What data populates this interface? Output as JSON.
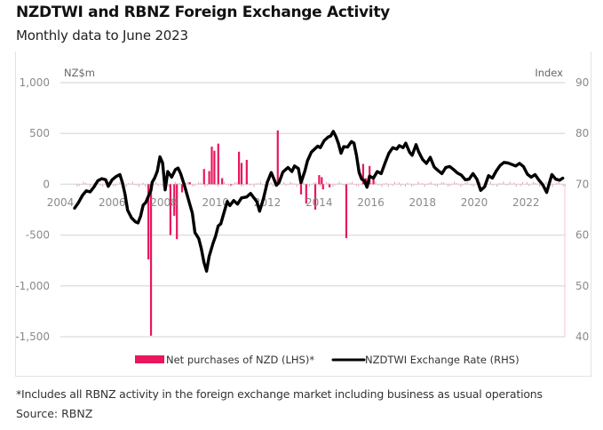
{
  "header": {
    "title": "NZDTWI and RBNZ Foreign Exchange Activity",
    "subtitle": "Monthly data to June 2023"
  },
  "footer": {
    "footnote": "*Includes all RBNZ activity in the foreign exchange market including business as usual operations",
    "source": "Source: RBNZ"
  },
  "colors": {
    "bars": "#e8175d",
    "line": "#000000",
    "grid": "#e0e0e0",
    "axis_text": "#8a8a8a"
  },
  "chart_data": {
    "type": "bar+line",
    "title": "NZDTWI and RBNZ Foreign Exchange Activity",
    "subtitle": "Monthly data to June 2023",
    "left_axis": {
      "label": "NZ$m",
      "range": [
        -1500,
        1000
      ],
      "ticks": [
        1000,
        500,
        0,
        -500,
        -1000,
        -1500
      ],
      "tick_labels": [
        "1,000",
        "500",
        "0",
        "-500",
        "-1,000",
        "-1,500"
      ]
    },
    "right_axis": {
      "label": "Index",
      "range": [
        40,
        90
      ],
      "ticks": [
        90,
        80,
        70,
        60,
        50,
        40
      ],
      "tick_labels": [
        "90",
        "80",
        "70",
        "60",
        "50",
        "40"
      ]
    },
    "x_axis": {
      "range": [
        2004.0,
        2023.5
      ],
      "ticks": [
        2004,
        2006,
        2008,
        2010,
        2012,
        2014,
        2016,
        2018,
        2020,
        2022
      ],
      "tick_labels": [
        "2004",
        "2006",
        "2008",
        "2010",
        "2012",
        "2014",
        "2016",
        "2018",
        "2020",
        "2022"
      ]
    },
    "grid": true,
    "legend_position": "bottom",
    "series": [
      {
        "name": "Net purchases of NZD (LHS)*",
        "type": "bar",
        "axis": "left",
        "color": "#e8175d",
        "points": [
          {
            "x": 2007.4,
            "y": -740
          },
          {
            "x": 2007.5,
            "y": -1490
          },
          {
            "x": 2008.25,
            "y": -500
          },
          {
            "x": 2008.4,
            "y": -310
          },
          {
            "x": 2008.5,
            "y": -540
          },
          {
            "x": 2008.7,
            "y": -80
          },
          {
            "x": 2009.0,
            "y": 20
          },
          {
            "x": 2009.55,
            "y": 150
          },
          {
            "x": 2009.75,
            "y": 130
          },
          {
            "x": 2009.85,
            "y": 370
          },
          {
            "x": 2009.95,
            "y": 330
          },
          {
            "x": 2010.1,
            "y": 400
          },
          {
            "x": 2010.25,
            "y": 60
          },
          {
            "x": 2010.6,
            "y": 0
          },
          {
            "x": 2010.9,
            "y": 320
          },
          {
            "x": 2011.0,
            "y": 210
          },
          {
            "x": 2011.2,
            "y": 240
          },
          {
            "x": 2012.4,
            "y": 530
          },
          {
            "x": 2013.3,
            "y": -100
          },
          {
            "x": 2013.5,
            "y": -190
          },
          {
            "x": 2013.85,
            "y": -250
          },
          {
            "x": 2014.0,
            "y": 90
          },
          {
            "x": 2014.1,
            "y": 70
          },
          {
            "x": 2014.15,
            "y": -50
          },
          {
            "x": 2014.4,
            "y": -30
          },
          {
            "x": 2015.05,
            "y": -530
          },
          {
            "x": 2015.7,
            "y": 200
          },
          {
            "x": 2015.8,
            "y": 60
          },
          {
            "x": 2015.95,
            "y": 180
          },
          {
            "x": 2016.1,
            "y": 70
          }
        ]
      },
      {
        "name": "NZDTWI Exchange Rate (RHS)",
        "type": "line",
        "axis": "right",
        "color": "#000000",
        "points": [
          {
            "x": 2004.55,
            "y": 65.3
          },
          {
            "x": 2004.7,
            "y": 66.4
          },
          {
            "x": 2004.85,
            "y": 67.8
          },
          {
            "x": 2005.0,
            "y": 68.7
          },
          {
            "x": 2005.15,
            "y": 68.5
          },
          {
            "x": 2005.3,
            "y": 69.5
          },
          {
            "x": 2005.45,
            "y": 70.7
          },
          {
            "x": 2005.6,
            "y": 71.1
          },
          {
            "x": 2005.75,
            "y": 70.9
          },
          {
            "x": 2005.85,
            "y": 69.6
          },
          {
            "x": 2006.0,
            "y": 70.9
          },
          {
            "x": 2006.15,
            "y": 71.5
          },
          {
            "x": 2006.3,
            "y": 71.9
          },
          {
            "x": 2006.4,
            "y": 70.3
          },
          {
            "x": 2006.5,
            "y": 68.0
          },
          {
            "x": 2006.6,
            "y": 64.9
          },
          {
            "x": 2006.75,
            "y": 63.4
          },
          {
            "x": 2006.9,
            "y": 62.6
          },
          {
            "x": 2007.0,
            "y": 62.4
          },
          {
            "x": 2007.1,
            "y": 63.7
          },
          {
            "x": 2007.2,
            "y": 65.9
          },
          {
            "x": 2007.3,
            "y": 66.4
          },
          {
            "x": 2007.4,
            "y": 67.6
          },
          {
            "x": 2007.5,
            "y": 68.8
          },
          {
            "x": 2007.55,
            "y": 70.4
          },
          {
            "x": 2007.65,
            "y": 71.3
          },
          {
            "x": 2007.75,
            "y": 72.6
          },
          {
            "x": 2007.85,
            "y": 75.4
          },
          {
            "x": 2007.95,
            "y": 74.2
          },
          {
            "x": 2008.05,
            "y": 68.9
          },
          {
            "x": 2008.15,
            "y": 72.5
          },
          {
            "x": 2008.3,
            "y": 71.4
          },
          {
            "x": 2008.45,
            "y": 72.9
          },
          {
            "x": 2008.55,
            "y": 73.2
          },
          {
            "x": 2008.65,
            "y": 72.1
          },
          {
            "x": 2008.8,
            "y": 69.7
          },
          {
            "x": 2008.95,
            "y": 67.0
          },
          {
            "x": 2009.1,
            "y": 64.3
          },
          {
            "x": 2009.2,
            "y": 60.5
          },
          {
            "x": 2009.35,
            "y": 59.3
          },
          {
            "x": 2009.45,
            "y": 57.3
          },
          {
            "x": 2009.55,
            "y": 54.6
          },
          {
            "x": 2009.65,
            "y": 52.9
          },
          {
            "x": 2009.75,
            "y": 55.8
          },
          {
            "x": 2009.9,
            "y": 58.4
          },
          {
            "x": 2010.0,
            "y": 59.8
          },
          {
            "x": 2010.1,
            "y": 61.8
          },
          {
            "x": 2010.2,
            "y": 62.2
          },
          {
            "x": 2010.35,
            "y": 64.9
          },
          {
            "x": 2010.45,
            "y": 66.6
          },
          {
            "x": 2010.55,
            "y": 65.8
          },
          {
            "x": 2010.7,
            "y": 66.8
          },
          {
            "x": 2010.85,
            "y": 66.1
          },
          {
            "x": 2011.0,
            "y": 67.3
          },
          {
            "x": 2011.2,
            "y": 67.5
          },
          {
            "x": 2011.35,
            "y": 68.2
          },
          {
            "x": 2011.5,
            "y": 67.2
          },
          {
            "x": 2011.6,
            "y": 66.5
          },
          {
            "x": 2011.7,
            "y": 64.7
          },
          {
            "x": 2011.85,
            "y": 67.2
          },
          {
            "x": 2012.0,
            "y": 70.4
          },
          {
            "x": 2012.15,
            "y": 72.3
          },
          {
            "x": 2012.25,
            "y": 71.1
          },
          {
            "x": 2012.35,
            "y": 69.8
          },
          {
            "x": 2012.45,
            "y": 70.3
          },
          {
            "x": 2012.6,
            "y": 72.4
          },
          {
            "x": 2012.8,
            "y": 73.3
          },
          {
            "x": 2012.95,
            "y": 72.5
          },
          {
            "x": 2013.05,
            "y": 73.6
          },
          {
            "x": 2013.2,
            "y": 73.1
          },
          {
            "x": 2013.3,
            "y": 70.3
          },
          {
            "x": 2013.45,
            "y": 72.6
          },
          {
            "x": 2013.55,
            "y": 74.6
          },
          {
            "x": 2013.7,
            "y": 76.3
          },
          {
            "x": 2013.8,
            "y": 76.8
          },
          {
            "x": 2013.95,
            "y": 77.5
          },
          {
            "x": 2014.05,
            "y": 77.2
          },
          {
            "x": 2014.2,
            "y": 78.6
          },
          {
            "x": 2014.35,
            "y": 79.3
          },
          {
            "x": 2014.45,
            "y": 79.5
          },
          {
            "x": 2014.55,
            "y": 80.4
          },
          {
            "x": 2014.65,
            "y": 79.4
          },
          {
            "x": 2014.75,
            "y": 78.0
          },
          {
            "x": 2014.85,
            "y": 76.1
          },
          {
            "x": 2014.95,
            "y": 77.4
          },
          {
            "x": 2015.1,
            "y": 77.3
          },
          {
            "x": 2015.25,
            "y": 78.4
          },
          {
            "x": 2015.35,
            "y": 78.1
          },
          {
            "x": 2015.45,
            "y": 75.6
          },
          {
            "x": 2015.55,
            "y": 72.3
          },
          {
            "x": 2015.65,
            "y": 71.0
          },
          {
            "x": 2015.75,
            "y": 70.7
          },
          {
            "x": 2015.85,
            "y": 69.4
          },
          {
            "x": 2015.95,
            "y": 71.6
          },
          {
            "x": 2016.1,
            "y": 71.2
          },
          {
            "x": 2016.25,
            "y": 72.5
          },
          {
            "x": 2016.4,
            "y": 72.1
          },
          {
            "x": 2016.55,
            "y": 74.2
          },
          {
            "x": 2016.7,
            "y": 76.1
          },
          {
            "x": 2016.85,
            "y": 77.2
          },
          {
            "x": 2017.0,
            "y": 76.9
          },
          {
            "x": 2017.1,
            "y": 77.6
          },
          {
            "x": 2017.25,
            "y": 77.2
          },
          {
            "x": 2017.35,
            "y": 78.1
          },
          {
            "x": 2017.5,
            "y": 76.3
          },
          {
            "x": 2017.6,
            "y": 75.7
          },
          {
            "x": 2017.75,
            "y": 77.8
          },
          {
            "x": 2017.85,
            "y": 76.4
          },
          {
            "x": 2018.0,
            "y": 74.9
          },
          {
            "x": 2018.15,
            "y": 74.1
          },
          {
            "x": 2018.3,
            "y": 75.3
          },
          {
            "x": 2018.45,
            "y": 73.4
          },
          {
            "x": 2018.6,
            "y": 72.7
          },
          {
            "x": 2018.75,
            "y": 72.1
          },
          {
            "x": 2018.9,
            "y": 73.3
          },
          {
            "x": 2019.05,
            "y": 73.5
          },
          {
            "x": 2019.2,
            "y": 72.9
          },
          {
            "x": 2019.35,
            "y": 72.2
          },
          {
            "x": 2019.5,
            "y": 71.8
          },
          {
            "x": 2019.65,
            "y": 70.9
          },
          {
            "x": 2019.8,
            "y": 71.0
          },
          {
            "x": 2019.95,
            "y": 72.1
          },
          {
            "x": 2020.1,
            "y": 71.0
          },
          {
            "x": 2020.25,
            "y": 68.8
          },
          {
            "x": 2020.4,
            "y": 69.5
          },
          {
            "x": 2020.55,
            "y": 71.7
          },
          {
            "x": 2020.7,
            "y": 71.2
          },
          {
            "x": 2020.85,
            "y": 72.6
          },
          {
            "x": 2021.0,
            "y": 73.7
          },
          {
            "x": 2021.15,
            "y": 74.3
          },
          {
            "x": 2021.3,
            "y": 74.2
          },
          {
            "x": 2021.45,
            "y": 73.9
          },
          {
            "x": 2021.6,
            "y": 73.6
          },
          {
            "x": 2021.75,
            "y": 74.1
          },
          {
            "x": 2021.9,
            "y": 73.5
          },
          {
            "x": 2022.05,
            "y": 72.0
          },
          {
            "x": 2022.2,
            "y": 71.4
          },
          {
            "x": 2022.35,
            "y": 71.9
          },
          {
            "x": 2022.5,
            "y": 70.8
          },
          {
            "x": 2022.65,
            "y": 69.9
          },
          {
            "x": 2022.8,
            "y": 68.4
          },
          {
            "x": 2022.9,
            "y": 70.2
          },
          {
            "x": 2023.0,
            "y": 71.9
          },
          {
            "x": 2023.15,
            "y": 71.0
          },
          {
            "x": 2023.3,
            "y": 70.8
          },
          {
            "x": 2023.42,
            "y": 71.2
          }
        ]
      }
    ],
    "legend": [
      {
        "label": "Net purchases of NZD (LHS)*",
        "marker": "bar"
      },
      {
        "label": "NZDTWI Exchange Rate (RHS)",
        "marker": "line"
      }
    ]
  }
}
